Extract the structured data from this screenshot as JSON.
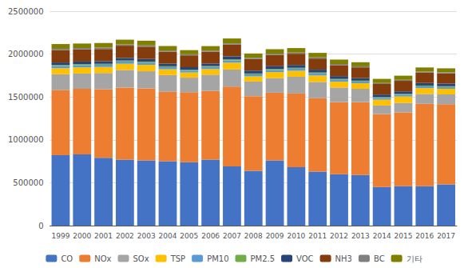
{
  "chart_data": {
    "type": "bar",
    "stacked": true,
    "categories": [
      "1999",
      "2000",
      "2001",
      "2002",
      "2003",
      "2004",
      "2005",
      "2006",
      "2007",
      "2008",
      "2009",
      "2010",
      "2011",
      "2012",
      "2013",
      "2014",
      "2015",
      "2016",
      "2017"
    ],
    "series": [
      {
        "name": "CO",
        "color": "#4472C4",
        "values": [
          820000,
          830000,
          790000,
          770000,
          760000,
          750000,
          740000,
          770000,
          690000,
          640000,
          760000,
          680000,
          630000,
          600000,
          590000,
          450000,
          460000,
          460000,
          480000
        ]
      },
      {
        "name": "NOx",
        "color": "#ED7D31",
        "values": [
          760000,
          765000,
          800000,
          840000,
          840000,
          810000,
          815000,
          800000,
          930000,
          870000,
          790000,
          860000,
          855000,
          840000,
          850000,
          850000,
          860000,
          960000,
          935000
        ]
      },
      {
        "name": "SOx",
        "color": "#A5A5A5",
        "values": [
          185000,
          178000,
          190000,
          205000,
          200000,
          195000,
          170000,
          190000,
          200000,
          170000,
          170000,
          195000,
          190000,
          170000,
          155000,
          100000,
          110000,
          115000,
          115000
        ]
      },
      {
        "name": "TSP",
        "color": "#FFC000",
        "values": [
          70000,
          72000,
          70000,
          72000,
          75000,
          68000,
          60000,
          65000,
          80000,
          60000,
          70000,
          70000,
          75000,
          68000,
          65000,
          68000,
          75000,
          68000,
          65000
        ]
      },
      {
        "name": "PM10",
        "color": "#5B9BD5",
        "values": [
          25000,
          26000,
          25000,
          26000,
          26000,
          24000,
          22000,
          24000,
          26000,
          23000,
          24000,
          24000,
          24000,
          22000,
          20000,
          20000,
          20000,
          20000,
          20000
        ]
      },
      {
        "name": "PM2.5",
        "color": "#70AD47",
        "values": [
          12000,
          12000,
          12000,
          12000,
          12000,
          11000,
          10000,
          11000,
          12000,
          11000,
          11000,
          11000,
          11000,
          10000,
          10000,
          10000,
          10000,
          10000,
          10000
        ]
      },
      {
        "name": "VOC",
        "color": "#264478",
        "values": [
          30000,
          30000,
          30000,
          30000,
          30000,
          30000,
          30000,
          30000,
          35000,
          33000,
          33000,
          33000,
          33000,
          33000,
          30000,
          30000,
          30000,
          30000,
          30000
        ]
      },
      {
        "name": "NH3",
        "color": "#843C0C",
        "values": [
          145000,
          143000,
          143000,
          143000,
          143000,
          140000,
          138000,
          137000,
          137000,
          135000,
          133000,
          131000,
          130000,
          128000,
          125000,
          123000,
          123000,
          121000,
          120000
        ]
      },
      {
        "name": "BC",
        "color": "#7F7F7F",
        "values": [
          15000,
          15000,
          15000,
          15000,
          15000,
          14000,
          13000,
          14000,
          15000,
          13000,
          14000,
          14000,
          14000,
          13000,
          12000,
          12000,
          12000,
          12000,
          12000
        ]
      },
      {
        "name": "기타",
        "color": "#808000",
        "values": [
          55000,
          52000,
          55000,
          55000,
          55000,
          52000,
          48000,
          52000,
          57000,
          52000,
          52000,
          52000,
          52000,
          52000,
          48000,
          48000,
          48000,
          48000,
          47000
        ]
      }
    ],
    "ylim": [
      0,
      2500000
    ],
    "yticks": [
      0,
      500000,
      1000000,
      1500000,
      2000000,
      2500000
    ],
    "grid": true,
    "legend": "bottom"
  }
}
